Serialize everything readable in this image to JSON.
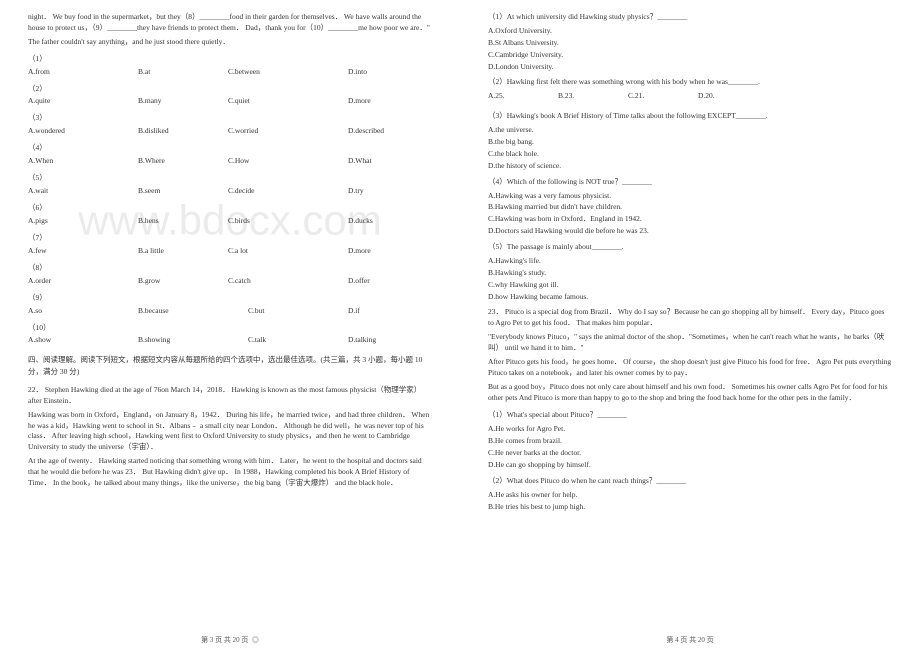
{
  "watermark": "www.bdocx.com",
  "left": {
    "para1": "night．  We buy food in the supermarket，but they（8）________food in their garden for themselves．  We have walls around the house to protect us，（9）________they have friends to protect them．  Dad，thank you for（10）________me how poor we are．\"",
    "para2": "   The father couldn't say anything，and he just stood there quietly．",
    "questions": [
      {
        "num": "（1）",
        "opts": [
          "A.from",
          "B.at",
          "C.between",
          "D.into"
        ],
        "cols": [
          0,
          110,
          200,
          320
        ]
      },
      {
        "num": "（2）",
        "opts": [
          "A.quite",
          "B.many",
          "C.quiet",
          "D.more"
        ],
        "cols": [
          0,
          110,
          200,
          320
        ]
      },
      {
        "num": "（3）",
        "opts": [
          "A.wondered",
          "B.disliked",
          "C.worried",
          "D.described"
        ],
        "cols": [
          0,
          110,
          200,
          320
        ]
      },
      {
        "num": "（4）",
        "opts": [
          "A.When",
          "B.Where",
          "C.How",
          "D.What"
        ],
        "cols": [
          0,
          110,
          200,
          320
        ]
      },
      {
        "num": "（5）",
        "opts": [
          "A.wait",
          "B.seem",
          "C.decide",
          "D.try"
        ],
        "cols": [
          0,
          110,
          200,
          320
        ]
      },
      {
        "num": "（6）",
        "opts": [
          "A.pigs",
          "B.hens",
          "C.birds",
          "D.ducks"
        ],
        "cols": [
          0,
          110,
          200,
          320
        ]
      },
      {
        "num": "（7）",
        "opts": [
          "A.few",
          "B.a little",
          "C.a lot",
          "D.more"
        ],
        "cols": [
          0,
          110,
          200,
          320
        ]
      },
      {
        "num": "（8）",
        "opts": [
          "A.order",
          "B.grow",
          "C.catch",
          "D.offer"
        ],
        "cols": [
          0,
          110,
          200,
          320
        ]
      },
      {
        "num": "（9）",
        "opts": [
          "A.so",
          "B.because",
          "C.but",
          "D.if"
        ],
        "cols": [
          0,
          110,
          220,
          320
        ]
      },
      {
        "num": "（10）",
        "opts": [
          "A.show",
          "B.showing",
          "C.talk",
          "D.talking"
        ],
        "cols": [
          0,
          110,
          220,
          320
        ]
      }
    ],
    "section4": "四、阅读理解。阅读下列短文，根据短文内容从每题所给的四个选项中，选出最佳选项。(共三篇，共 3 小题，每小题 10 分，满分 30 分)",
    "passage22_num": "22．",
    "passage22_p1": "Stephen Hawking died at the age of 76on March 14，2018．  Hawking is known as the most famous physicist（物理学家） after Einstein．",
    "passage22_p2": "   Hawking was born in Oxford，England，on January 8，1942．  During his life，he married twice，and had three children．  When he was a kid，Hawking went to school in St．Albans﹣ a small city near London．  Although he did well，he was never top of his class．  After leaving high school，Hawking went first to Oxford University to study physics，and then he went to Cambridge University to study the universe（宇宙）．",
    "passage22_p3": "   At the age of twenty．  Hawking started noticing that something wrong with him．  Later，he went to the hospital and doctors said that he would die before he was 23．  But Hawking didn't give up．  In 1988，Hawking completed his book A Brief History of Time．  In the book，he talked about many things，like the universe，the big bang（宇宙大爆炸） and the black hole．",
    "footer": "第 3 页 共 20 页"
  },
  "right": {
    "q1": "（1）At which university did Hawking study physics？________",
    "q1_opts": [
      "A.Oxford University.",
      "B.St Albans University.",
      "C.Cambridge University.",
      "D.London University."
    ],
    "q2": "（2）Hawking first felt there was something wrong with his body when he was________.",
    "q2_opts": [
      "A.25.",
      "B.23.",
      "C.21.",
      "D.20."
    ],
    "q2_cols": [
      0,
      70,
      140,
      210
    ],
    "q3": "（3）Hawking's book A Brief History of Time talks about the following EXCEPT________.",
    "q3_opts": [
      "A.the universe.",
      "B.the big bang.",
      "C.the black hole.",
      "D.the history of science."
    ],
    "q4": "（4）Which of the following is NOT true？________",
    "q4_opts": [
      "A.Hawking was a very famous physicist.",
      "B.Hawking married but didn't have children.",
      "C.Hawking was born in Oxford．England in 1942.",
      "D.Doctors said Hawking would die before he was 23."
    ],
    "q5": "（5）The passage is mainly about________.",
    "q5_opts": [
      "A.Hawking's life.",
      "B.Hawking's study.",
      "C.why Hawking got ill.",
      "D.how Hawking became famous."
    ],
    "passage23_num": "23．",
    "passage23_p1": "Pituco is a special dog from Brazil．  Why do I say so？Because he can go shopping all by himself．  Every day，Pituco goes to Agro Pet to get his food．  That makes him popular．",
    "passage23_p2": "   \"Everybody knows Pituco，\" says the animal doctor of the shop．\"Sometimes，when he can't reach what he wants，he barks（吠叫） until we hand it to him．\"",
    "passage23_p3": "   After Pituco gets his food，he goes home．  Of course，the shop doesn't just give Pituco his food for free．  Agro Pet puts everything Pituco takes on a notebook，and later his owner comes by to pay．",
    "passage23_p4": "   But as a good boy，Pituco does not only care about himself and his own food．  Sometimes his owner calls Agro Pet for food for his other pets And Pituco is more than happy to go to the shop and bring the food back home for the other pets in the family．",
    "q23_1": "（1）What's special about Pituco？________",
    "q23_1_opts": [
      "A.He works for Agro Pet.",
      "B.He comes from brazil.",
      "C.He never barks at the doctor.",
      "D.He can go shopping by himself."
    ],
    "q23_2": "（2）What does Pituco do when he cant reach things？________",
    "q23_2_opts": [
      "A.He asks his owner for help.",
      "B.He tries his best to jump high."
    ],
    "footer": "第 4 页 共 20 页"
  }
}
